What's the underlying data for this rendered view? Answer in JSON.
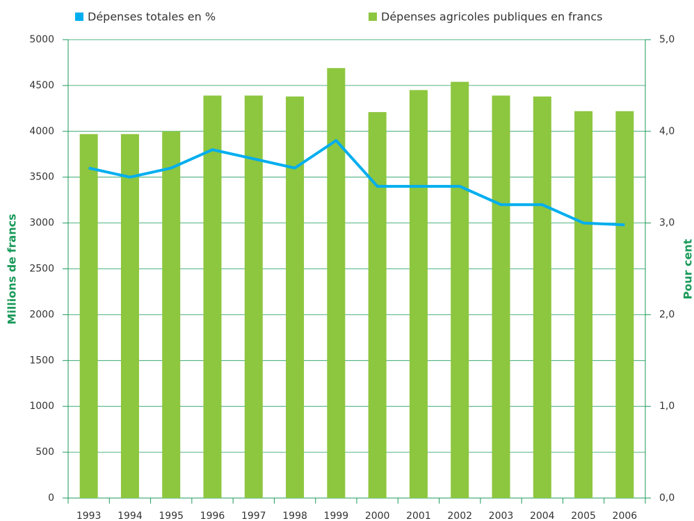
{
  "chart_data": {
    "type": "bar",
    "y_label": "Millions de francs",
    "y2_label": "Pour cent",
    "categories": [
      "1993",
      "1994",
      "1995",
      "1996",
      "1997",
      "1998",
      "1999",
      "2000",
      "2001",
      "2002",
      "2003",
      "2004",
      "2005",
      "2006"
    ],
    "series": [
      {
        "name": "Dépenses totales en %",
        "type": "line",
        "axis": "y2",
        "color": "#00aeef",
        "values": [
          3.6,
          3.5,
          3.6,
          3.8,
          3.7,
          3.6,
          3.9,
          3.4,
          3.4,
          3.4,
          3.2,
          3.2,
          3.0,
          2.98
        ]
      },
      {
        "name": "Dépenses agricoles publiques en francs",
        "type": "bar",
        "color": "#8dc63f",
        "values": [
          3970,
          3970,
          4000,
          4390,
          4390,
          4380,
          4690,
          4210,
          4450,
          4540,
          4390,
          4380,
          4220,
          4220
        ]
      }
    ],
    "ylim": [
      0,
      5000
    ],
    "yticks": [
      0,
      500,
      1000,
      1500,
      2000,
      2500,
      3000,
      3500,
      4000,
      4500,
      5000
    ],
    "y2lim": [
      0,
      5
    ],
    "y2ticks": [
      {
        "value": 0,
        "label": "0,0"
      },
      {
        "value": 1,
        "label": "1,0"
      },
      {
        "value": 2,
        "label": "2,0"
      },
      {
        "value": 3,
        "label": "3,0"
      },
      {
        "value": 4,
        "label": "4,0"
      },
      {
        "value": 5,
        "label": "5,0"
      }
    ],
    "grid": true,
    "axis_color": "#1a9a5a"
  }
}
